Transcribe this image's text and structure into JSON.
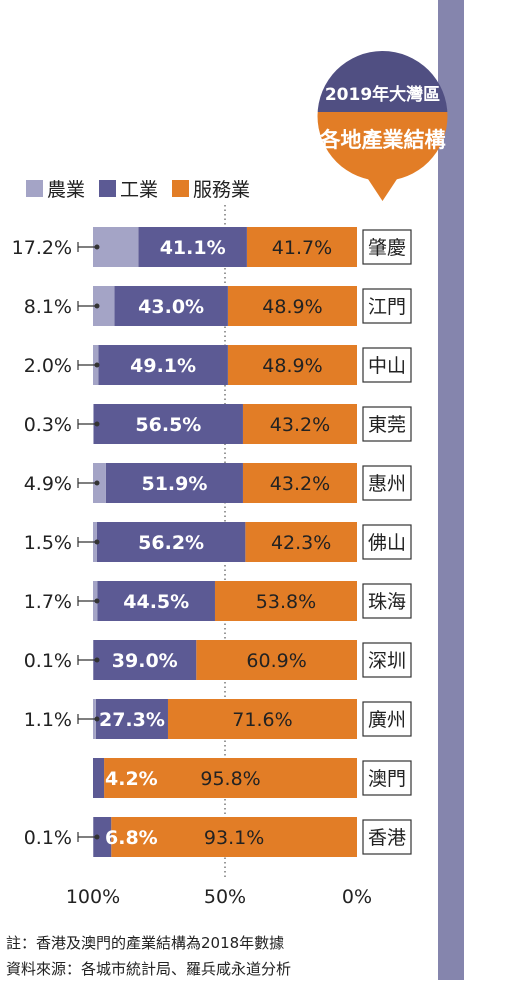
{
  "title": {
    "line1": "2019年大灣區",
    "line2": "各地產業結構"
  },
  "colors": {
    "agriculture": "#a4a4c6",
    "industry": "#5c5a94",
    "services": "#e27d26",
    "sidebar": "#8585ad",
    "badge_top": "#504f82"
  },
  "chart_data": {
    "type": "bar",
    "stacked": true,
    "orientation": "horizontal",
    "x_direction": "reversed",
    "xlim": [
      0,
      100
    ],
    "x_ticks": [
      "100%",
      "50%",
      "0%"
    ],
    "legend_position": "top-left",
    "series": [
      {
        "name": "農業",
        "values": [
          17.2,
          8.1,
          2.0,
          0.3,
          4.9,
          1.5,
          1.7,
          0.1,
          1.1,
          0.0,
          0.1
        ]
      },
      {
        "name": "工業",
        "values": [
          41.1,
          43.0,
          49.1,
          56.5,
          51.9,
          56.2,
          44.5,
          39.0,
          27.3,
          4.2,
          6.8
        ]
      },
      {
        "name": "服務業",
        "values": [
          41.7,
          48.9,
          48.9,
          43.2,
          43.2,
          42.3,
          53.8,
          60.9,
          71.6,
          95.8,
          93.1
        ]
      }
    ],
    "categories": [
      "肇慶",
      "江門",
      "中山",
      "東莞",
      "惠州",
      "佛山",
      "珠海",
      "深圳",
      "廣州",
      "澳門",
      "香港"
    ],
    "labels": {
      "agriculture": [
        "17.2%",
        "8.1%",
        "2.0%",
        "0.3%",
        "4.9%",
        "1.5%",
        "1.7%",
        "0.1%",
        "1.1%",
        "",
        "0.1%"
      ],
      "industry": [
        "41.1%",
        "43.0%",
        "49.1%",
        "56.5%",
        "51.9%",
        "56.2%",
        "44.5%",
        "39.0%",
        "27.3%",
        "4.2%",
        "6.8%"
      ],
      "services": [
        "41.7%",
        "48.9%",
        "48.9%",
        "43.2%",
        "43.2%",
        "42.3%",
        "53.8%",
        "60.9%",
        "71.6%",
        "95.8%",
        "93.1%"
      ]
    }
  },
  "footnotes": [
    "註：香港及澳門的產業結構為2018年數據",
    "資料來源：各城市統計局、羅兵咸永道分析"
  ]
}
